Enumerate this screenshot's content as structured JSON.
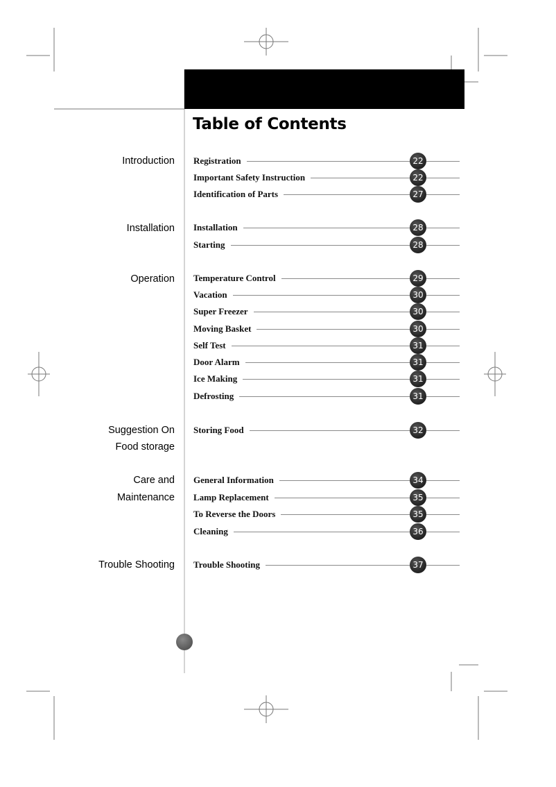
{
  "title": "Table of Contents",
  "sections": [
    {
      "lines": [
        "Introduction"
      ],
      "entries": [
        {
          "label": "Registration",
          "page": "22"
        },
        {
          "label": "Important Safety Instruction",
          "page": "22"
        },
        {
          "label": "Identification of Parts",
          "page": "27"
        }
      ]
    },
    {
      "lines": [
        "Installation"
      ],
      "entries": [
        {
          "label": "Installation",
          "page": "28"
        },
        {
          "label": "Starting",
          "page": "28"
        }
      ]
    },
    {
      "lines": [
        "Operation"
      ],
      "entries": [
        {
          "label": "Temperature Control",
          "page": "29"
        },
        {
          "label": "Vacation",
          "page": "30"
        },
        {
          "label": "Super Freezer",
          "page": "30"
        },
        {
          "label": "Moving Basket",
          "page": "30"
        },
        {
          "label": "Self Test",
          "page": "31"
        },
        {
          "label": "Door Alarm",
          "page": "31"
        },
        {
          "label": "Ice Making",
          "page": "31"
        },
        {
          "label": "Defrosting",
          "page": "31"
        }
      ]
    },
    {
      "lines": [
        "Suggestion On",
        "Food storage"
      ],
      "entries": [
        {
          "label": "Storing Food",
          "page": "32"
        }
      ]
    },
    {
      "lines": [
        "Care and",
        "Maintenance"
      ],
      "entries": [
        {
          "label": "General Information",
          "page": "34"
        },
        {
          "label": "Lamp Replacement",
          "page": "35"
        },
        {
          "label": "To Reverse the Doors",
          "page": "35"
        },
        {
          "label": "Cleaning",
          "page": "36"
        }
      ]
    },
    {
      "lines": [
        "Trouble Shooting"
      ],
      "entries": [
        {
          "label": "Trouble Shooting",
          "page": "37"
        }
      ]
    }
  ]
}
